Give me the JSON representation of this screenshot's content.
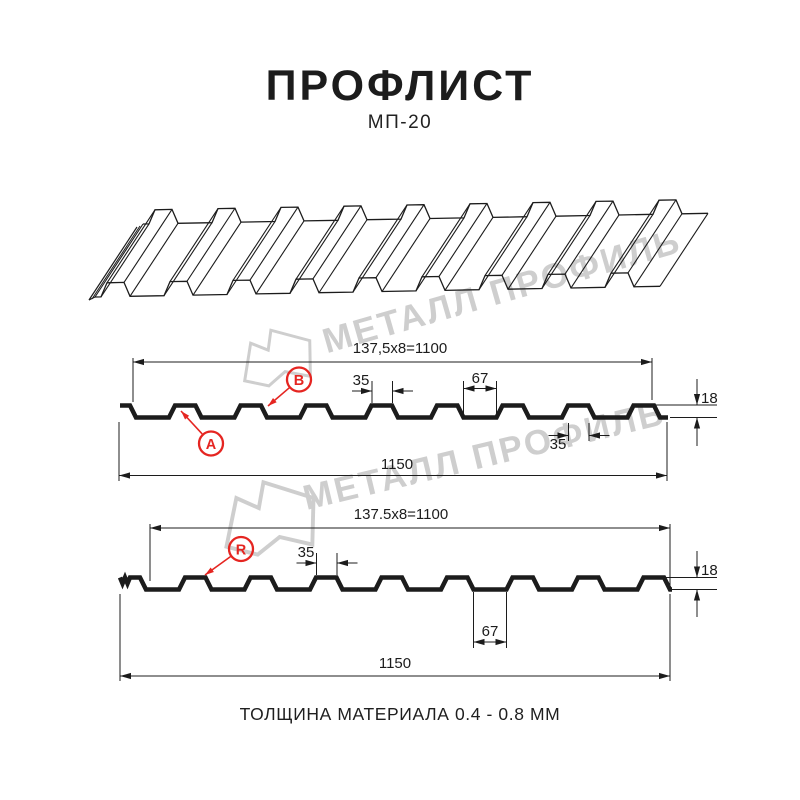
{
  "page": {
    "title": "ПРОФЛИСТ",
    "subtitle": "МП-20",
    "footer": "ТОЛЩИНА МАТЕРИАЛА 0.4 - 0.8 ММ"
  },
  "watermark": {
    "text": "МЕТАЛЛ ПРОФИЛЬ"
  },
  "colors": {
    "accent_red": "#e52521",
    "line_black": "#1c1c1c",
    "watermark_gray": "#c9c9c9"
  },
  "profile_views": {
    "front": {
      "markers": [
        "A",
        "B"
      ],
      "dims": {
        "module": "137,5x8=1100",
        "crest_top_width": "35",
        "valley_width": "67",
        "height": "18",
        "crest_bottom_width": "35",
        "overall_width": "1150"
      }
    },
    "back": {
      "markers": [
        "R"
      ],
      "dims": {
        "module": "137.5x8=1100",
        "crest_top_width": "35",
        "valley_width": "67",
        "height": "18",
        "overall_width": "1150"
      }
    }
  }
}
